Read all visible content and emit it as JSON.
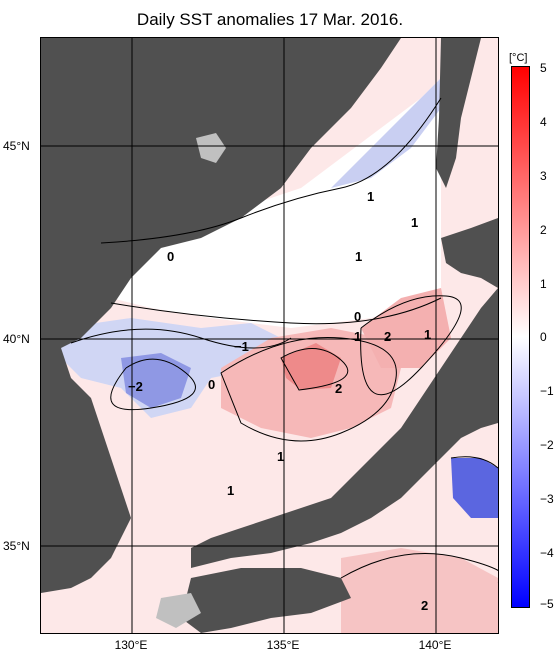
{
  "title": "Daily SST anomalies 17 Mar. 2016.",
  "lat_labels": [
    "45°N",
    "40°N",
    "35°N"
  ],
  "lon_labels": [
    "130°E",
    "135°E",
    "140°E"
  ],
  "colorbar": {
    "unit": "[°C]",
    "ticks": [
      "5",
      "4",
      "3",
      "2",
      "1",
      "0",
      "−1",
      "−2",
      "−3",
      "−4",
      "−5"
    ],
    "range": [
      -5,
      5
    ],
    "colors": {
      "neg_max": "#0000ff",
      "neutral": "#ffffff",
      "pos_max": "#ff0000"
    }
  },
  "contour_labels": [
    "0",
    "1",
    "1",
    "1",
    "0",
    "1",
    "2",
    "1",
    "−1",
    "−2",
    "0",
    "2",
    "1",
    "1",
    "2"
  ],
  "colors": {
    "land": "#505050",
    "islands": "#c0c0c0",
    "grid": "#000000"
  },
  "map_extent": {
    "lon": [
      127,
      142
    ],
    "lat": [
      33,
      48
    ]
  }
}
